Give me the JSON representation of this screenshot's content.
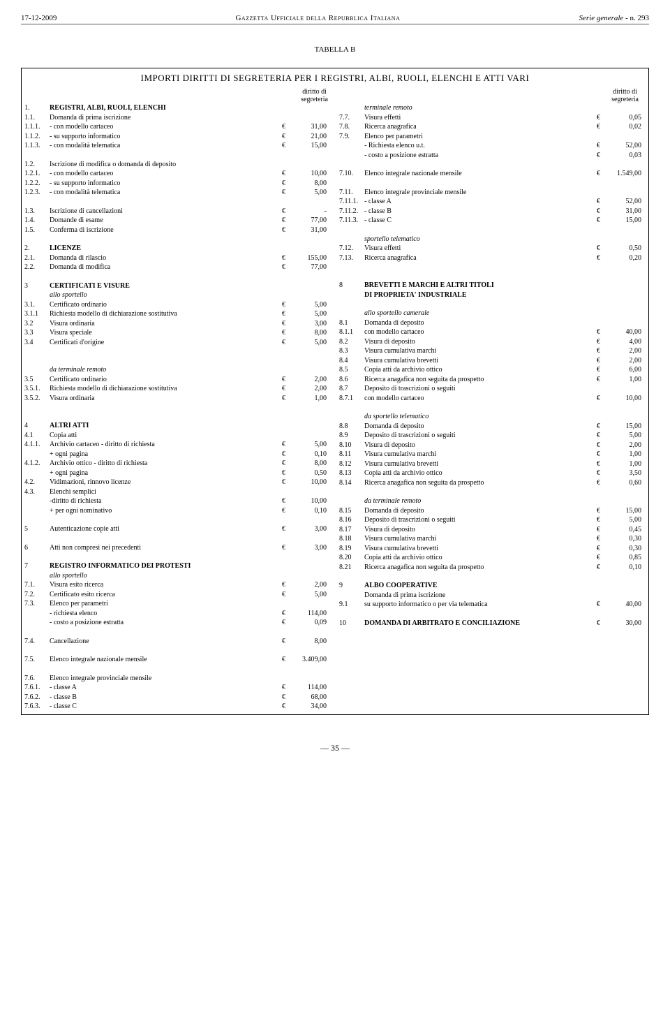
{
  "header": {
    "date": "17-12-2009",
    "gazette": "Gazzetta Ufficiale della Repubblica Italiana",
    "serie": "Serie generale",
    "num": " - n. 293"
  },
  "tabella_label": "TABELLA B",
  "main_title": "IMPORTI DIRITTI DI SEGRETERIA PER I REGISTRI, ALBI, RUOLI, ELENCHI E  ATTI VARI",
  "sub_header_line1": "diritto di",
  "sub_header_line2": "segreteria",
  "euro": "€",
  "left": [
    {
      "n": "1.",
      "d": "REGISTRI, ALBI, RUOLI, ELENCHI",
      "cls": "bold"
    },
    {
      "n": "1.1.",
      "d": "Domanda di prima iscrizione"
    },
    {
      "n": "1.1.1.",
      "d": "- con modello cartaceo",
      "c": "€",
      "a": "31,00"
    },
    {
      "n": "1.1.2.",
      "d": "- su supporto informatico",
      "c": "€",
      "a": "21,00"
    },
    {
      "n": "1.1.3.",
      "d": "- con modalità telematica",
      "c": "€",
      "a": "15,00"
    },
    {
      "spacer": 1
    },
    {
      "n": "1.2.",
      "d": "Iscrizione di modifica o domanda di deposito"
    },
    {
      "n": "1.2.1.",
      "d": "- con modello cartaceo",
      "c": "€",
      "a": "10,00"
    },
    {
      "n": "1.2.2.",
      "d": "- su supporto informatico",
      "c": "€",
      "a": "8,00"
    },
    {
      "n": "1.2.3.",
      "d": "- con modalità telematica",
      "c": "€",
      "a": "5,00"
    },
    {
      "spacer": 1
    },
    {
      "n": "1.3.",
      "d": "Iscrizione di cancellazioni",
      "c": "€",
      "a": "-"
    },
    {
      "n": "1.4.",
      "d": "Domande di esame",
      "c": "€",
      "a": "77,00"
    },
    {
      "n": "1.5.",
      "d": "Conferma di iscrizione",
      "c": "€",
      "a": "31,00"
    },
    {
      "spacer": 1
    },
    {
      "n": "2.",
      "d": "LICENZE",
      "cls": "bold"
    },
    {
      "n": "2.1.",
      "d": "Domanda di rilascio",
      "c": "€",
      "a": "155,00"
    },
    {
      "n": "2.2.",
      "d": "Domanda di modifica",
      "c": "€",
      "a": "77,00"
    },
    {
      "spacer": 1
    },
    {
      "n": "3",
      "d": "CERTIFICATI E VISURE",
      "cls": "bold"
    },
    {
      "n": "",
      "d": "allo sportello",
      "cls": "italic"
    },
    {
      "n": "3.1.",
      "d": "Certificato ordinario",
      "c": "€",
      "a": "5,00"
    },
    {
      "n": "3.1.1",
      "d": "Richiesta modello di dichiarazione sostitutiva",
      "c": "€",
      "a": "5,00"
    },
    {
      "n": "3.2",
      "d": "Visura ordinaria",
      "c": "€",
      "a": "3,00"
    },
    {
      "n": "3.3",
      "d": "Visura speciale",
      "c": "€",
      "a": "8,00"
    },
    {
      "n": "3.4",
      "d": "Certificati d'origine",
      "c": "€",
      "a": "5,00"
    },
    {
      "spacer": 1
    },
    {
      "spacer": 1
    },
    {
      "n": "",
      "d": "da terminale remoto",
      "cls": "italic"
    },
    {
      "n": "3.5",
      "d": "Certificato ordinario",
      "c": "€",
      "a": "2,00"
    },
    {
      "n": "3.5.1.",
      "d": "Richiesta modello di dichiarazione sostitutiva",
      "c": "€",
      "a": "2,00"
    },
    {
      "n": "3.5.2.",
      "d": "Visura ordinaria",
      "c": "€",
      "a": "1,00"
    },
    {
      "spacer": 1
    },
    {
      "spacer": 1
    },
    {
      "n": "4",
      "d": "ALTRI ATTI",
      "cls": "bold"
    },
    {
      "n": "4.1",
      "d": "Copia atti"
    },
    {
      "n": "4.1.1.",
      "d": "Archivio cartaceo - diritto di richiesta",
      "c": "€",
      "a": "5,00"
    },
    {
      "n": "",
      "d": "                + ogni pagina",
      "c": "€",
      "a": "0,10"
    },
    {
      "n": "4.1.2.",
      "d": "Archivio ottico - diritto di richiesta",
      "c": "€",
      "a": "8,00"
    },
    {
      "n": "",
      "d": "                + ogni pagina",
      "c": "€",
      "a": "0,50"
    },
    {
      "n": "4.2.",
      "d": "Vidimazioni, rinnovo licenze",
      "c": "€",
      "a": "10,00"
    },
    {
      "n": "4.3.",
      "d": "Elenchi semplici"
    },
    {
      "n": "",
      "d": "-diritto di richiesta",
      "c": "€",
      "a": "10,00"
    },
    {
      "n": "",
      "d": "        + per ogni nominativo",
      "c": "€",
      "a": "0,10"
    },
    {
      "spacer": 1
    },
    {
      "n": "5",
      "d": "Autenticazione copie atti",
      "c": "€",
      "a": "3,00"
    },
    {
      "spacer": 1
    },
    {
      "n": "6",
      "d": "Atti non compresi nei precedenti",
      "c": "€",
      "a": "3,00"
    },
    {
      "spacer": 1
    },
    {
      "n": "7",
      "d": "REGISTRO INFORMATICO DEI PROTESTI",
      "cls": "bold"
    },
    {
      "n": "",
      "d": "allo sportello",
      "cls": "italic"
    },
    {
      "n": "7.1.",
      "d": "Visura esito ricerca",
      "c": "€",
      "a": "2,00"
    },
    {
      "n": "7.2.",
      "d": "Certificato  esito ricerca",
      "c": "€",
      "a": "5,00"
    },
    {
      "n": "7.3.",
      "d": "Elenco per parametri"
    },
    {
      "n": "",
      "d": "- richiesta elenco",
      "c": "€",
      "a": "114,00"
    },
    {
      "n": "",
      "d": "- costo a posizione estratta",
      "c": "€",
      "a": "0,09"
    },
    {
      "spacer": 1
    },
    {
      "n": "7.4.",
      "d": "Cancellazione",
      "c": "€",
      "a": "8,00"
    },
    {
      "spacer": 1
    },
    {
      "n": "7.5.",
      "d": "Elenco integrale nazionale mensile",
      "c": "€",
      "a": "3.409,00"
    },
    {
      "spacer": 1
    },
    {
      "n": "7.6.",
      "d": "Elenco integrale provinciale mensile"
    },
    {
      "n": "7.6.1.",
      "d": "- classe A",
      "c": "€",
      "a": "114,00"
    },
    {
      "n": "7.6.2.",
      "d": "- classe B",
      "c": "€",
      "a": "68,00"
    },
    {
      "n": "7.6.3.",
      "d": "- classe C",
      "c": "€",
      "a": "34,00"
    }
  ],
  "right": [
    {
      "n": "",
      "d": "terminale remoto",
      "cls": "italic"
    },
    {
      "n": "7.7.",
      "d": "Visura effetti",
      "c": "€",
      "a": "0,05"
    },
    {
      "n": "7.8.",
      "d": "Ricerca anagrafica",
      "c": "€",
      "a": "0,02"
    },
    {
      "n": "7.9.",
      "d": "Elenco per parametri"
    },
    {
      "n": "",
      "d": "- Richiesta elenco u.t.",
      "c": "€",
      "a": "52,00"
    },
    {
      "n": "",
      "d": "- costo a posizione estratta",
      "c": "€",
      "a": "0,03"
    },
    {
      "spacer": 1
    },
    {
      "n": "7.10.",
      "d": "Elenco integrale nazionale mensile",
      "c": "€",
      "a": "1.549,00"
    },
    {
      "spacer": 1
    },
    {
      "n": "7.11.",
      "d": "Elenco integrale provinciale mensile"
    },
    {
      "n": "7.11.1.",
      "d": "- classe A",
      "c": "€",
      "a": "52,00"
    },
    {
      "n": "7.11.2.",
      "d": "- classe B",
      "c": "€",
      "a": "31,00"
    },
    {
      "n": "7.11.3.",
      "d": "- classe C",
      "c": "€",
      "a": "15,00"
    },
    {
      "spacer": 1
    },
    {
      "n": "",
      "d": "sportello telematico",
      "cls": "italic"
    },
    {
      "n": "7.12.",
      "d": "Visura effetti",
      "c": "€",
      "a": "0,50"
    },
    {
      "n": "7.13.",
      "d": "Ricerca anagrafica",
      "c": "€",
      "a": "0,20"
    },
    {
      "spacer": 1
    },
    {
      "spacer": 1
    },
    {
      "n": "8",
      "d": "BREVETTI E MARCHI E ALTRI TITOLI",
      "cls": "bold"
    },
    {
      "n": "",
      "d": "DI PROPRIETA' INDUSTRIALE",
      "cls": "bold"
    },
    {
      "spacer": 1
    },
    {
      "n": "",
      "d": "allo sportello camerale",
      "cls": "italic"
    },
    {
      "n": "8.1",
      "d": "Domanda di deposito"
    },
    {
      "n": "8.1.1",
      "d": "con modello cartaceo",
      "c": "€",
      "a": "40,00"
    },
    {
      "n": "8.2",
      "d": "Visura di deposito",
      "c": "€",
      "a": "4,00"
    },
    {
      "n": "8.3",
      "d": "Visura cumulativa marchi",
      "c": "€",
      "a": "2,00"
    },
    {
      "n": "8.4",
      "d": "Visura cumulativa brevetti",
      "c": "€",
      "a": "2,00"
    },
    {
      "n": "8.5",
      "d": "Copia atti da archivio ottico",
      "c": "€",
      "a": "6,00"
    },
    {
      "n": "8.6",
      "d": "Ricerca anagafica non seguita da prospetto",
      "c": "€",
      "a": "1,00"
    },
    {
      "n": "8.7",
      "d": "Deposito di trascrizioni o seguiti"
    },
    {
      "n": "8.7.1",
      "d": "con modello cartaceo",
      "c": "€",
      "a": "10,00"
    },
    {
      "spacer": 1
    },
    {
      "n": "",
      "d": "da sportello telematico",
      "cls": "italic"
    },
    {
      "n": "8.8",
      "d": "Domanda di deposito",
      "c": "€",
      "a": "15,00"
    },
    {
      "n": "8.9",
      "d": "Deposito di trascrizioni o seguiti",
      "c": "€",
      "a": "5,00"
    },
    {
      "n": "8.10",
      "d": "Visura di deposito",
      "c": "€",
      "a": "2,00"
    },
    {
      "n": "8.11",
      "d": "Visura cumulativa marchi",
      "c": "€",
      "a": "1,00"
    },
    {
      "n": "8.12",
      "d": "Visura cumulativa brevetti",
      "c": "€",
      "a": "1,00"
    },
    {
      "n": "8.13",
      "d": "Copia atti da archivio ottico",
      "c": "€",
      "a": "3,50"
    },
    {
      "n": "8.14",
      "d": "Ricerca anagafica non seguita da prospetto",
      "c": "€",
      "a": "0,60"
    },
    {
      "spacer": 1
    },
    {
      "n": "",
      "d": "da terminale remoto",
      "cls": "italic"
    },
    {
      "n": "8.15",
      "d": "Domanda di deposito",
      "c": "€",
      "a": "15,00"
    },
    {
      "n": "8.16",
      "d": "Deposito di trascrizioni o seguiti",
      "c": "€",
      "a": "5,00"
    },
    {
      "n": "8.17",
      "d": "Visura di deposito",
      "c": "€",
      "a": "0,45"
    },
    {
      "n": "8.18",
      "d": "Visura cumulativa marchi",
      "c": "€",
      "a": "0,30"
    },
    {
      "n": "8.19",
      "d": "Visura cumulativa brevetti",
      "c": "€",
      "a": "0,30"
    },
    {
      "n": "8.20",
      "d": "Copia atti da archivio ottico",
      "c": "€",
      "a": "0,85"
    },
    {
      "n": "8.21",
      "d": "Ricerca anagafica non seguita da prospetto",
      "c": "€",
      "a": "0,10"
    },
    {
      "spacer": 1
    },
    {
      "n": "9",
      "d": "ALBO COOPERATIVE",
      "cls": "bold"
    },
    {
      "n": "",
      "d": "Domanda di prima iscrizione"
    },
    {
      "n": "9.1",
      "d": "su supporto informatico o per via telematica",
      "c": "€",
      "a": "40,00"
    },
    {
      "spacer": 1
    },
    {
      "n": "10",
      "d": "DOMANDA DI ARBITRATO E CONCILIAZIONE",
      "c": "€",
      "a": "30,00",
      "cls": "bold"
    }
  ],
  "footer": "— 35 —"
}
